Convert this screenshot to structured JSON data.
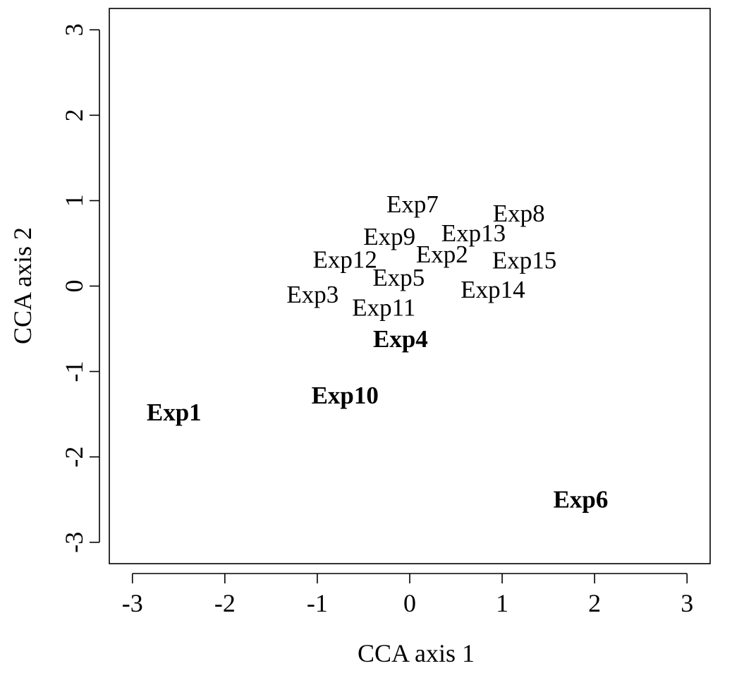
{
  "chart_data": {
    "type": "scatter",
    "title": "",
    "xlabel": "CCA axis 1",
    "ylabel": "CCA axis 2",
    "xlim": [
      -3.25,
      3.25
    ],
    "ylim": [
      -3.25,
      3.25
    ],
    "x_ticks": [
      -3,
      -2,
      -1,
      0,
      1,
      2,
      3
    ],
    "y_ticks": [
      -3,
      -2,
      -1,
      0,
      1,
      2,
      3
    ],
    "x_tick_labels": [
      "-3",
      "-2",
      "-1",
      "0",
      "1",
      "2",
      "3"
    ],
    "y_tick_labels": [
      "-3",
      "-2",
      "-1",
      "0",
      "1",
      "2",
      "3"
    ],
    "grid": false,
    "legend": "none",
    "points": [
      {
        "label": "Exp1",
        "x": -2.55,
        "y": -1.48,
        "bold": true
      },
      {
        "label": "Exp2",
        "x": 0.35,
        "y": 0.37,
        "bold": false
      },
      {
        "label": "Exp3",
        "x": -1.05,
        "y": -0.1,
        "bold": false
      },
      {
        "label": "Exp4",
        "x": -0.1,
        "y": -0.62,
        "bold": true
      },
      {
        "label": "Exp5",
        "x": -0.12,
        "y": 0.1,
        "bold": false
      },
      {
        "label": "Exp6",
        "x": 1.85,
        "y": -2.5,
        "bold": true
      },
      {
        "label": "Exp7",
        "x": 0.03,
        "y": 0.96,
        "bold": false
      },
      {
        "label": "Exp8",
        "x": 1.18,
        "y": 0.85,
        "bold": false
      },
      {
        "label": "Exp9",
        "x": -0.22,
        "y": 0.58,
        "bold": false
      },
      {
        "label": "Exp10",
        "x": -0.7,
        "y": -1.28,
        "bold": true
      },
      {
        "label": "Exp11",
        "x": -0.28,
        "y": -0.25,
        "bold": false
      },
      {
        "label": "Exp12",
        "x": -0.7,
        "y": 0.31,
        "bold": false
      },
      {
        "label": "Exp13",
        "x": 0.69,
        "y": 0.62,
        "bold": false
      },
      {
        "label": "Exp14",
        "x": 0.9,
        "y": -0.04,
        "bold": false
      },
      {
        "label": "Exp15",
        "x": 1.24,
        "y": 0.3,
        "bold": false
      }
    ]
  }
}
